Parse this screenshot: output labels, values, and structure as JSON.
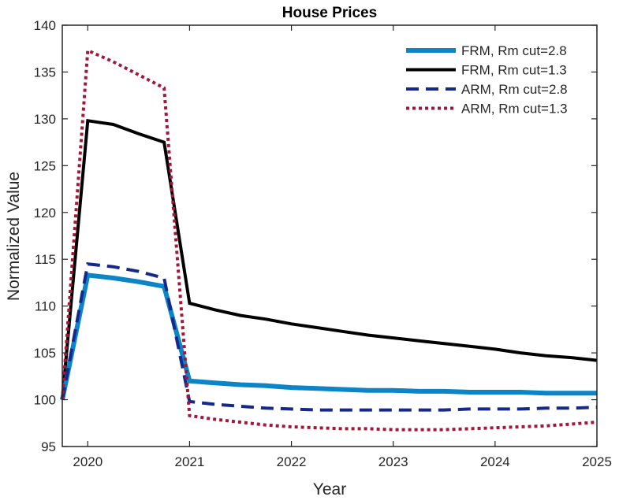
{
  "chart_data": {
    "type": "line",
    "title": "House Prices",
    "xlabel": "Year",
    "ylabel": "Normalized Value",
    "xlim": [
      2019.75,
      2025
    ],
    "ylim": [
      95,
      140
    ],
    "xticks": [
      2020,
      2021,
      2022,
      2023,
      2024,
      2025
    ],
    "yticks": [
      95,
      100,
      105,
      110,
      115,
      120,
      125,
      130,
      135,
      140
    ],
    "grid": false,
    "legend_position": "top-right",
    "x": [
      2019.75,
      2020,
      2020.25,
      2020.5,
      2020.75,
      2021,
      2021.25,
      2021.5,
      2021.75,
      2022,
      2022.25,
      2022.5,
      2022.75,
      2023,
      2023.25,
      2023.5,
      2023.75,
      2024,
      2024.25,
      2024.5,
      2024.75,
      2025
    ],
    "series": [
      {
        "name": "FRM, Rm cut=2.8",
        "color": "#0b84c8",
        "style": "solid-thick",
        "values": [
          100,
          113.3,
          113.0,
          112.6,
          112.1,
          102.0,
          101.8,
          101.6,
          101.5,
          101.3,
          101.2,
          101.1,
          101.0,
          101.0,
          100.9,
          100.9,
          100.8,
          100.8,
          100.8,
          100.7,
          100.7,
          100.7
        ]
      },
      {
        "name": "FRM, Rm cut=1.3",
        "color": "#000000",
        "style": "solid",
        "values": [
          100,
          129.8,
          129.4,
          128.4,
          127.5,
          110.3,
          109.6,
          109.0,
          108.6,
          108.1,
          107.7,
          107.3,
          106.9,
          106.6,
          106.3,
          106.0,
          105.7,
          105.4,
          105.0,
          104.7,
          104.5,
          104.2
        ]
      },
      {
        "name": "ARM, Rm cut=2.8",
        "color": "#15288c",
        "style": "dashed",
        "values": [
          100,
          114.5,
          114.2,
          113.7,
          113.0,
          99.8,
          99.5,
          99.3,
          99.1,
          99.0,
          98.9,
          98.9,
          98.9,
          98.9,
          98.9,
          98.9,
          99.0,
          99.0,
          99.0,
          99.1,
          99.1,
          99.2
        ]
      },
      {
        "name": "ARM, Rm cut=1.3",
        "color": "#a3173a",
        "style": "dotted",
        "values": [
          100,
          137.3,
          136.1,
          134.7,
          133.3,
          98.3,
          97.9,
          97.6,
          97.3,
          97.1,
          97.0,
          96.9,
          96.9,
          96.8,
          96.8,
          96.8,
          96.9,
          97.0,
          97.1,
          97.2,
          97.4,
          97.6
        ]
      }
    ]
  }
}
